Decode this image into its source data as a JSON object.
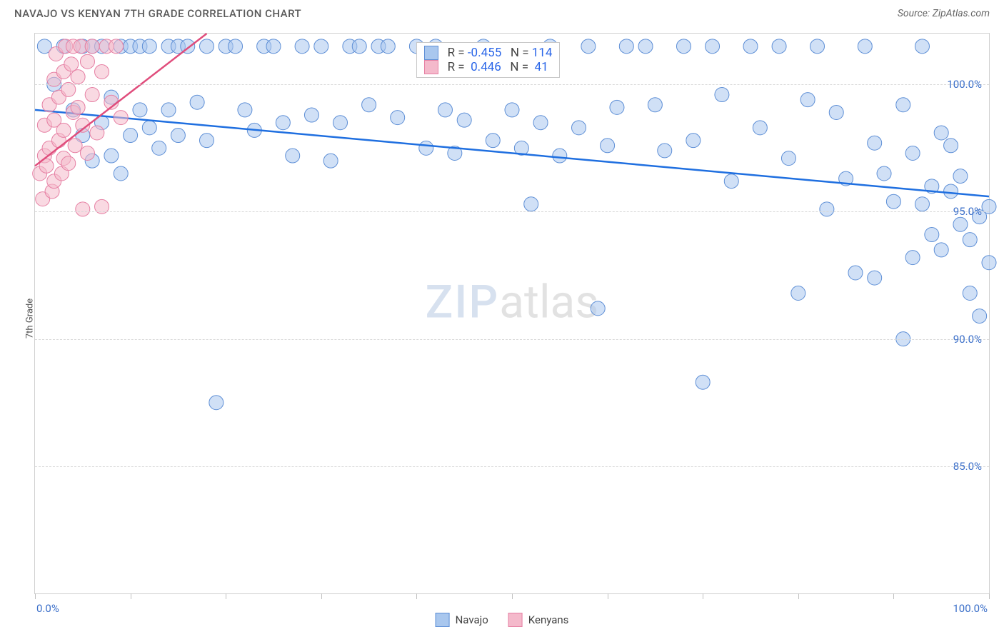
{
  "header": {
    "title": "NAVAJO VS KENYAN 7TH GRADE CORRELATION CHART",
    "source": "Source: ZipAtlas.com"
  },
  "y_axis_label": "7th Grade",
  "watermark": {
    "left": "ZIP",
    "right": "atlas"
  },
  "chart": {
    "type": "scatter",
    "xlim": [
      0,
      100
    ],
    "ylim": [
      80,
      102
    ],
    "background_color": "#ffffff",
    "grid_color": "#d8d8d8",
    "grid_dash": true,
    "y_ticks": [
      {
        "v": 100,
        "label": "100.0%"
      },
      {
        "v": 95,
        "label": "95.0%"
      },
      {
        "v": 90,
        "label": "90.0%"
      },
      {
        "v": 85,
        "label": "85.0%"
      }
    ],
    "x_ticks_minor": [
      0,
      10,
      20,
      30,
      40,
      50,
      60,
      70,
      80,
      90,
      100
    ],
    "x_tick_labels": [
      {
        "v": 0,
        "label": "0.0%"
      },
      {
        "v": 100,
        "label": "100.0%"
      }
    ],
    "axis_label_color": "#3b6fc9",
    "axis_label_fontsize": 15,
    "marker_radius": 10,
    "marker_opacity": 0.55,
    "series": [
      {
        "name": "Navajo",
        "fill_color": "#a9c7ee",
        "stroke_color": "#5e8fd6",
        "trend": {
          "x1": 0,
          "y1": 99.0,
          "x2": 100,
          "y2": 95.6,
          "color": "#1f6fe0",
          "width": 2.5
        },
        "stats": {
          "R": "-0.455",
          "N": "114"
        },
        "points": [
          [
            1,
            101.5
          ],
          [
            2,
            100
          ],
          [
            3,
            101.5
          ],
          [
            4,
            99
          ],
          [
            5,
            98
          ],
          [
            5,
            101.5
          ],
          [
            6,
            97
          ],
          [
            6,
            101.5
          ],
          [
            7,
            98.5
          ],
          [
            7,
            101.5
          ],
          [
            8,
            99.5
          ],
          [
            8,
            97.2
          ],
          [
            9,
            101.5
          ],
          [
            9,
            96.5
          ],
          [
            10,
            98
          ],
          [
            10,
            101.5
          ],
          [
            11,
            101.5
          ],
          [
            11,
            99
          ],
          [
            12,
            98.3
          ],
          [
            12,
            101.5
          ],
          [
            13,
            97.5
          ],
          [
            14,
            101.5
          ],
          [
            14,
            99
          ],
          [
            15,
            98
          ],
          [
            15,
            101.5
          ],
          [
            16,
            101.5
          ],
          [
            17,
            99.3
          ],
          [
            18,
            101.5
          ],
          [
            18,
            97.8
          ],
          [
            19,
            87.5
          ],
          [
            20,
            101.5
          ],
          [
            21,
            101.5
          ],
          [
            22,
            99
          ],
          [
            23,
            98.2
          ],
          [
            24,
            101.5
          ],
          [
            25,
            101.5
          ],
          [
            26,
            98.5
          ],
          [
            27,
            97.2
          ],
          [
            28,
            101.5
          ],
          [
            29,
            98.8
          ],
          [
            30,
            101.5
          ],
          [
            31,
            97
          ],
          [
            32,
            98.5
          ],
          [
            33,
            101.5
          ],
          [
            34,
            101.5
          ],
          [
            35,
            99.2
          ],
          [
            36,
            101.5
          ],
          [
            37,
            101.5
          ],
          [
            38,
            98.7
          ],
          [
            40,
            101.5
          ],
          [
            41,
            97.5
          ],
          [
            42,
            101.5
          ],
          [
            43,
            99
          ],
          [
            44,
            97.3
          ],
          [
            45,
            98.6
          ],
          [
            47,
            101.5
          ],
          [
            48,
            97.8
          ],
          [
            50,
            99
          ],
          [
            51,
            97.5
          ],
          [
            52,
            95.3
          ],
          [
            53,
            98.5
          ],
          [
            54,
            101.5
          ],
          [
            55,
            97.2
          ],
          [
            57,
            98.3
          ],
          [
            58,
            101.5
          ],
          [
            59,
            91.2
          ],
          [
            60,
            97.6
          ],
          [
            61,
            99.1
          ],
          [
            62,
            101.5
          ],
          [
            64,
            101.5
          ],
          [
            65,
            99.2
          ],
          [
            66,
            97.4
          ],
          [
            68,
            101.5
          ],
          [
            69,
            97.8
          ],
          [
            70,
            88.3
          ],
          [
            71,
            101.5
          ],
          [
            72,
            99.6
          ],
          [
            73,
            96.2
          ],
          [
            75,
            101.5
          ],
          [
            76,
            98.3
          ],
          [
            78,
            101.5
          ],
          [
            79,
            97.1
          ],
          [
            80,
            91.8
          ],
          [
            81,
            99.4
          ],
          [
            82,
            101.5
          ],
          [
            83,
            95.1
          ],
          [
            84,
            98.9
          ],
          [
            85,
            96.3
          ],
          [
            86,
            92.6
          ],
          [
            87,
            101.5
          ],
          [
            88,
            97.7
          ],
          [
            88,
            92.4
          ],
          [
            89,
            96.5
          ],
          [
            90,
            95.4
          ],
          [
            91,
            99.2
          ],
          [
            91,
            90
          ],
          [
            92,
            97.3
          ],
          [
            92,
            93.2
          ],
          [
            93,
            95.3
          ],
          [
            93,
            101.5
          ],
          [
            94,
            96
          ],
          [
            94,
            94.1
          ],
          [
            95,
            98.1
          ],
          [
            95,
            93.5
          ],
          [
            96,
            95.8
          ],
          [
            96,
            97.6
          ],
          [
            97,
            94.5
          ],
          [
            97,
            96.4
          ],
          [
            98,
            93.9
          ],
          [
            98,
            91.8
          ],
          [
            99,
            94.8
          ],
          [
            99,
            90.9
          ],
          [
            100,
            95.2
          ],
          [
            100,
            93
          ]
        ]
      },
      {
        "name": "Kenyans",
        "fill_color": "#f4b9cb",
        "stroke_color": "#e67fa3",
        "trend": {
          "x1": 0,
          "y1": 96.8,
          "x2": 18,
          "y2": 102,
          "color": "#e04d7c",
          "width": 2.5
        },
        "stats": {
          "R": "0.446",
          "N": "41"
        },
        "points": [
          [
            0.5,
            96.5
          ],
          [
            0.8,
            95.5
          ],
          [
            1,
            97.2
          ],
          [
            1,
            98.4
          ],
          [
            1.2,
            96.8
          ],
          [
            1.5,
            99.2
          ],
          [
            1.5,
            97.5
          ],
          [
            1.8,
            95.8
          ],
          [
            2,
            98.6
          ],
          [
            2,
            100.2
          ],
          [
            2,
            96.2
          ],
          [
            2.2,
            101.2
          ],
          [
            2.5,
            97.8
          ],
          [
            2.5,
            99.5
          ],
          [
            2.8,
            96.5
          ],
          [
            3,
            100.5
          ],
          [
            3,
            98.2
          ],
          [
            3,
            97.1
          ],
          [
            3.2,
            101.5
          ],
          [
            3.5,
            99.8
          ],
          [
            3.5,
            96.9
          ],
          [
            3.8,
            100.8
          ],
          [
            4,
            98.9
          ],
          [
            4,
            101.5
          ],
          [
            4.2,
            97.6
          ],
          [
            4.5,
            100.3
          ],
          [
            4.5,
            99.1
          ],
          [
            4.8,
            101.5
          ],
          [
            5,
            98.4
          ],
          [
            5,
            95.1
          ],
          [
            5.5,
            100.9
          ],
          [
            5.5,
            97.3
          ],
          [
            6,
            101.5
          ],
          [
            6,
            99.6
          ],
          [
            6.5,
            98.1
          ],
          [
            7,
            95.2
          ],
          [
            7,
            100.5
          ],
          [
            7.5,
            101.5
          ],
          [
            8,
            99.3
          ],
          [
            8.5,
            101.5
          ],
          [
            9,
            98.7
          ]
        ]
      }
    ],
    "stats_box": {
      "left_pct": 40,
      "top_pct": 1.5
    }
  },
  "bottom_legend": [
    {
      "label": "Navajo",
      "fill": "#a9c7ee",
      "stroke": "#5e8fd6"
    },
    {
      "label": "Kenyans",
      "fill": "#f4b9cb",
      "stroke": "#e67fa3"
    }
  ]
}
